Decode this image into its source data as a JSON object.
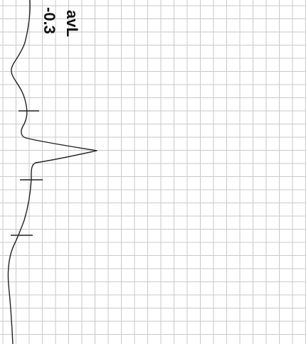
{
  "lead": {
    "name": "avL",
    "value": "-0.3"
  },
  "colors": {
    "grid": "#c9c9c9",
    "trace": "#222222",
    "paper": "#ffffff"
  }
}
